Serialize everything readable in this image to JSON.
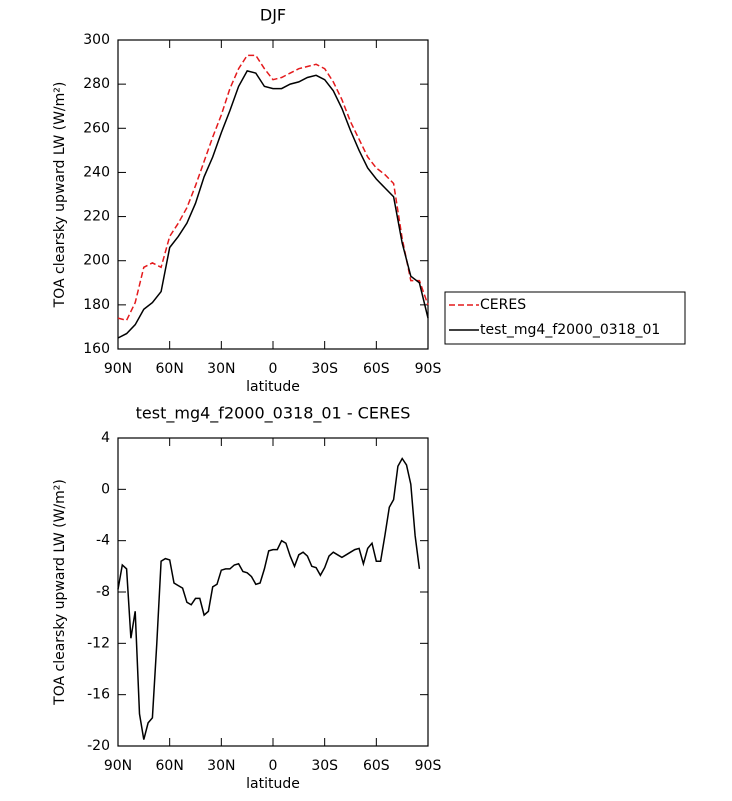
{
  "chart_data": [
    {
      "type": "line",
      "title": "DJF",
      "xlabel": "latitude",
      "ylabel": "TOA clearsky upward LW (W/m²)",
      "x": [
        90,
        85,
        80,
        75,
        70,
        65,
        60,
        55,
        50,
        45,
        40,
        35,
        30,
        25,
        20,
        15,
        10,
        5,
        0,
        -5,
        -10,
        -15,
        -20,
        -25,
        -30,
        -35,
        -40,
        -45,
        -50,
        -55,
        -60,
        -65,
        -70,
        -75,
        -80,
        -85,
        -90
      ],
      "series": [
        {
          "name": "CERES",
          "color": "#e41a1c",
          "linestyle": "dashed",
          "values": [
            174,
            173,
            181,
            197,
            199,
            197,
            211,
            217,
            224,
            234,
            245,
            256,
            266,
            278,
            287,
            293,
            293,
            287,
            282,
            283,
            285,
            287,
            288,
            289,
            287,
            281,
            273,
            263,
            255,
            247,
            242,
            239,
            235,
            210,
            191,
            191,
            180
          ]
        },
        {
          "name": "test_mg4_f2000_0318_01",
          "color": "#000000",
          "linestyle": "solid",
          "values": [
            165,
            167,
            171,
            178,
            181,
            186,
            206,
            211,
            217,
            226,
            238,
            247,
            258,
            268,
            279,
            286,
            285,
            279,
            278,
            278,
            280,
            281,
            283,
            284,
            282,
            277,
            269,
            259,
            250,
            242,
            237,
            233,
            229,
            208,
            193,
            190,
            174
          ]
        }
      ],
      "xlim": [
        90,
        -90
      ],
      "xticks": [
        {
          "value": 90,
          "label": "90N"
        },
        {
          "value": 60,
          "label": "60N"
        },
        {
          "value": 30,
          "label": "30N"
        },
        0,
        {
          "value": -30,
          "label": "30S"
        },
        {
          "value": -60,
          "label": "60S"
        },
        {
          "value": -90,
          "label": "90S"
        }
      ],
      "ylim": [
        160,
        300
      ],
      "yticks": [
        160,
        180,
        200,
        220,
        240,
        260,
        280,
        300
      ],
      "legend": "right"
    },
    {
      "type": "line",
      "title": "test_mg4_f2000_0318_01 - CERES",
      "xlabel": "latitude",
      "ylabel": "TOA clearsky upward LW (W/m²)",
      "x": [
        90,
        87.5,
        85,
        82.5,
        80,
        77.5,
        75,
        72.5,
        70,
        67.5,
        65,
        62.5,
        60,
        57.5,
        55,
        52.5,
        50,
        47.5,
        45,
        42.5,
        40,
        37.5,
        35,
        32.5,
        30,
        27.5,
        25,
        22.5,
        20,
        17.5,
        15,
        12.5,
        10,
        7.5,
        5,
        2.5,
        0,
        -2.5,
        -5,
        -7.5,
        -10,
        -12.5,
        -15,
        -17.5,
        -20,
        -22.5,
        -25,
        -27.5,
        -30,
        -32.5,
        -35,
        -37.5,
        -40,
        -42.5,
        -45,
        -47.5,
        -50,
        -52.5,
        -55,
        -57.5,
        -60,
        -62.5,
        -65,
        -67.5,
        -70,
        -72.5,
        -75,
        -77.5,
        -80,
        -82.5,
        -85
      ],
      "series": [
        {
          "color": "#000000",
          "linestyle": "solid",
          "values": [
            -7.8,
            -5.9,
            -6.2,
            -11.6,
            -9.5,
            -17.5,
            -19.5,
            -18.2,
            -17.8,
            -12,
            -5.6,
            -5.4,
            -5.5,
            -7.3,
            -7.5,
            -7.7,
            -8.8,
            -9,
            -8.5,
            -8.5,
            -9.8,
            -9.5,
            -7.6,
            -7.4,
            -6.3,
            -6.2,
            -6.2,
            -5.9,
            -5.8,
            -6.4,
            -6.5,
            -6.8,
            -7.4,
            -7.3,
            -6.2,
            -4.8,
            -4.7,
            -4.7,
            -4.0,
            -4.2,
            -5.2,
            -6.0,
            -5.1,
            -4.9,
            -5.2,
            -6.0,
            -6.1,
            -6.7,
            -6.1,
            -5.2,
            -4.9,
            -5.1,
            -5.3,
            -5.1,
            -4.9,
            -4.7,
            -4.6,
            -5.8,
            -4.6,
            -4.2,
            -5.6,
            -5.6,
            -3.6,
            -1.4,
            -0.8,
            1.8,
            2.4,
            1.9,
            0.4,
            -3.6,
            -6.2
          ]
        }
      ],
      "xlim": [
        90,
        -90
      ],
      "xticks": [
        {
          "value": 90,
          "label": "90N"
        },
        {
          "value": 60,
          "label": "60N"
        },
        {
          "value": 30,
          "label": "30N"
        },
        0,
        {
          "value": -30,
          "label": "30S"
        },
        {
          "value": -60,
          "label": "60S"
        },
        {
          "value": -90,
          "label": "90S"
        }
      ],
      "ylim": [
        -20,
        4
      ],
      "yticks": [
        -20,
        -16,
        -12,
        -8,
        -4,
        0,
        4
      ]
    }
  ]
}
